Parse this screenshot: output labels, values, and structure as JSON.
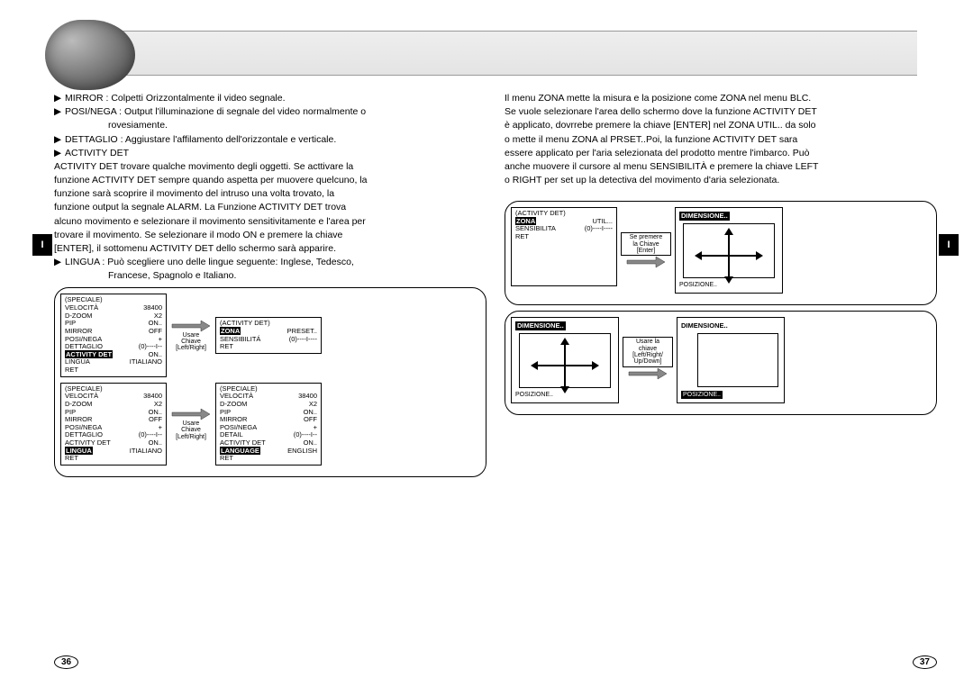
{
  "header": {
    "side_tab": "I"
  },
  "left": {
    "bullets": {
      "mirror": "MIRROR : Colpetti Orizzontalmente il video segnale.",
      "posinega": "POSI/NEGA : Output l'illuminazione di segnale del video normalmente o",
      "posinega2": "rovesiamente.",
      "dettaglio": "DETTAGLIO : Aggiustare l'affilamento dell'orizzontale e verticale.",
      "activity": "ACTIVITY DET",
      "activity_body1": "ACTIVITY DET trovare qualche movimento degli oggetti. Se acttivare la",
      "activity_body2": "funzione ACTIVITY DET sempre quando aspetta per muovere quelcuno, la",
      "activity_body3": "funzione sarà scoprire il movimento del intruso una volta trovato, la",
      "activity_body4": "funzione output la segnale ALARM. La Funzione ACTIVITY DET trova",
      "activity_body5": "alcuno movimento e selezionare il movimento sensitivitamente e l'area per",
      "activity_body6": "trovare il movimento. Se selezionare il modo ON e premere la chiave",
      "activity_body7": "[ENTER], il sottomenu ACTIVITY DET dello schermo sarà apparire.",
      "lingua": "LINGUA : Può scegliere uno delle lingue seguente: Inglese, Tedesco,",
      "lingua2": "Francese, Spagnolo e Italiano."
    },
    "menu1": {
      "title": "(SPECIALE)",
      "rows": [
        [
          "VELOCITÀ",
          "38400"
        ],
        [
          "D-ZOOM",
          "X2"
        ],
        [
          "PIP",
          "ON.."
        ],
        [
          "MIRROR",
          "OFF"
        ],
        [
          "POSI/NEGA",
          "+"
        ],
        [
          "DETTAGLIO",
          "(0)----I--"
        ],
        [
          "ACTIVITY DET",
          "ON.."
        ],
        [
          "LINGUA",
          "ITIALIANO"
        ],
        [
          "RET",
          ""
        ]
      ],
      "highlight": 6
    },
    "menu2": {
      "title": "(ACTIVITY DET)",
      "rows": [
        [
          "",
          ""
        ],
        [
          "",
          ""
        ],
        [
          "ZONA",
          "PRESET.."
        ],
        [
          "SENSIBILITÁ",
          "(0)----I----"
        ],
        [
          "RET",
          ""
        ]
      ],
      "highlight": 2
    },
    "menu3": {
      "title": "(SPECIALE)",
      "rows": [
        [
          "VELOCITÀ",
          "38400"
        ],
        [
          "D-ZOOM",
          "X2"
        ],
        [
          "PIP",
          "ON.."
        ],
        [
          "MIRROR",
          "OFF"
        ],
        [
          "POSI/NEGA",
          "+"
        ],
        [
          "DETTAGLIO",
          "(0)----I--"
        ],
        [
          "ACTIVITY DET",
          "ON.."
        ],
        [
          "LINGUA",
          "ITIALIANO"
        ],
        [
          "RET",
          ""
        ]
      ],
      "highlight": 7
    },
    "menu4": {
      "title": "(SPECIALE)",
      "rows": [
        [
          "VELOCITÀ",
          "38400"
        ],
        [
          "D-ZOOM",
          "X2"
        ],
        [
          "PIP",
          "ON.."
        ],
        [
          "MIRROR",
          "OFF"
        ],
        [
          "POSI/NEGA",
          "+"
        ],
        [
          "DETAIL",
          "(0)----I--"
        ],
        [
          "ACTIVITY DET",
          "ON.."
        ],
        [
          "LANGUAGE",
          "ENGLISH"
        ],
        [
          "RET",
          ""
        ]
      ],
      "highlight": 7
    },
    "arrow_label": {
      "l1": "Usare",
      "l2": "Chiave",
      "l3": "[Left/Right]"
    },
    "page_num": "36"
  },
  "right": {
    "para": {
      "p1": "Il menu ZONA mette la misura e la posizione come ZONA nel menu BLC.",
      "p2": "Se vuole selezionare l'area dello schermo dove la funzione ACTIVITY DET",
      "p3": "è applicato, dovrrebe premere la chiave [ENTER] nel ZONA UTIL.. da solo",
      "p4": "o mette il menu ZONA al PRSET..Poi, la funzione ACTIVITY DET sara",
      "p5": "essere applicato per l'aria selezionata del prodotto mentre l'imbarco. Può",
      "p6": "anche muovere il cursore al menu SENSIBILITÀ e premere la chiave LEFT",
      "p7": "o RIGHT per set up la detectiva del movimento d'aria selezionata."
    },
    "menuA": {
      "title": "(ACTIVITY DET)",
      "rows": [
        [
          "",
          ""
        ],
        [
          "",
          ""
        ],
        [
          "ZONA",
          "UTIL..."
        ],
        [
          "SENSIBILITA",
          "(0)----I----"
        ],
        [
          "RET",
          ""
        ]
      ],
      "highlight": 2
    },
    "arrowA": {
      "l1": "Se premere",
      "l2": "la Chiave",
      "l3": "[Enter]"
    },
    "dim1": {
      "title": "DIMENSIONE..",
      "footer": "POSIZIONE.."
    },
    "dim2": {
      "title": "DIMENSIONE..",
      "footer": "POSIZIONE.."
    },
    "dim3": {
      "title": "DIMENSIONE..",
      "footer": "POSIZIONE.."
    },
    "arrowB": {
      "l1": "Usare la",
      "l2": "chiave",
      "l3": "[Left/Right/",
      "l4": "Up/Down]"
    },
    "page_num": "37"
  },
  "colors": {
    "text": "#000000",
    "bg": "#ffffff",
    "highlight_bg": "#000000",
    "highlight_fg": "#ffffff"
  }
}
